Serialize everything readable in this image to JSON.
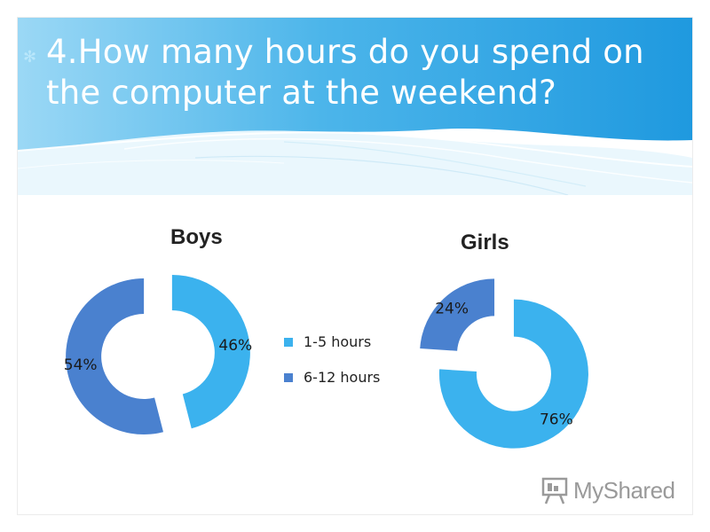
{
  "slide": {
    "title": "4.How many hours do you spend on the computer at  the weekend?",
    "title_bullet": "✻"
  },
  "colors": {
    "header_light": "#aee1f8",
    "header_dark": "#1f9be0",
    "series_1": "#3bb2ee",
    "series_2": "#4a81cf"
  },
  "legend": {
    "items": [
      {
        "label": "1-5 hours",
        "color": "#3bb2ee"
      },
      {
        "label": "6-12  hours",
        "color": "#4a81cf"
      }
    ]
  },
  "watermark": {
    "text": "MyShared",
    "icon": "presentation-board-icon"
  },
  "chart_data": [
    {
      "type": "pie",
      "variant": "doughnut-exploded",
      "title": "Boys",
      "categories": [
        "1-5 hours",
        "6-12  hours"
      ],
      "values": [
        46,
        54
      ],
      "labels": [
        "46%",
        "54%"
      ]
    },
    {
      "type": "pie",
      "variant": "doughnut-exploded",
      "title": "Girls",
      "categories": [
        "1-5 hours",
        "6-12  hours"
      ],
      "values": [
        76,
        24
      ],
      "labels": [
        "76%",
        "24%"
      ]
    }
  ]
}
